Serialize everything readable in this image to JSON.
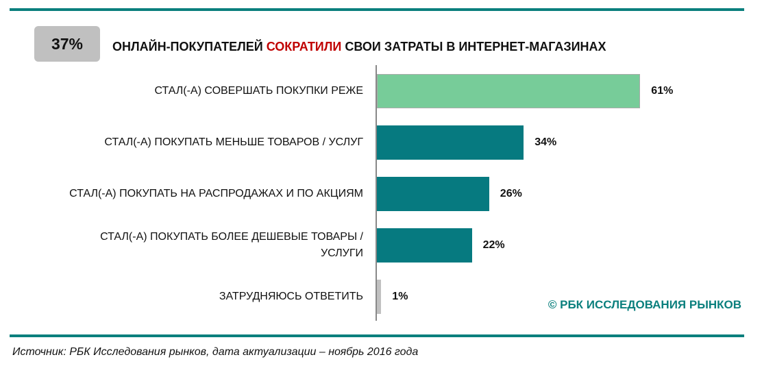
{
  "badge": "37%",
  "title": {
    "part1": "ОНЛАЙН-ПОКУПАТЕЛЕЙ ",
    "highlight": "СОКРАТИЛИ",
    "part2": " СВОИ ЗАТРАТЫ В ИНТЕРНЕТ-МАГАЗИНАХ"
  },
  "chart_data": {
    "type": "bar",
    "orientation": "horizontal",
    "categories": [
      "СТАЛ(-А) СОВЕРШАТЬ ПОКУПКИ РЕЖЕ",
      "СТАЛ(-А) ПОКУПАТЬ МЕНЬШЕ ТОВАРОВ / УСЛУГ",
      "СТАЛ(-А) ПОКУПАТЬ НА РАСПРОДАЖАХ И ПО АКЦИЯМ",
      "СТАЛ(-А) ПОКУПАТЬ БОЛЕЕ ДЕШЕВЫЕ ТОВАРЫ / УСЛУГИ",
      "ЗАТРУДНЯЮСЬ ОТВЕТИТЬ"
    ],
    "values": [
      61,
      34,
      26,
      22,
      1
    ],
    "labels": [
      "61%",
      "34%",
      "26%",
      "22%",
      "1%"
    ],
    "colors": [
      "#77cc99",
      "#067a80",
      "#067a80",
      "#067a80",
      "#c0c0c0"
    ],
    "xlim": [
      0,
      100
    ],
    "unit": "%"
  },
  "copyright": "© РБК ИССЛЕДОВАНИЯ РЫНКОВ",
  "source": "Источник: РБК Исследования рынков, дата актуализации – ноябрь 2016 года"
}
